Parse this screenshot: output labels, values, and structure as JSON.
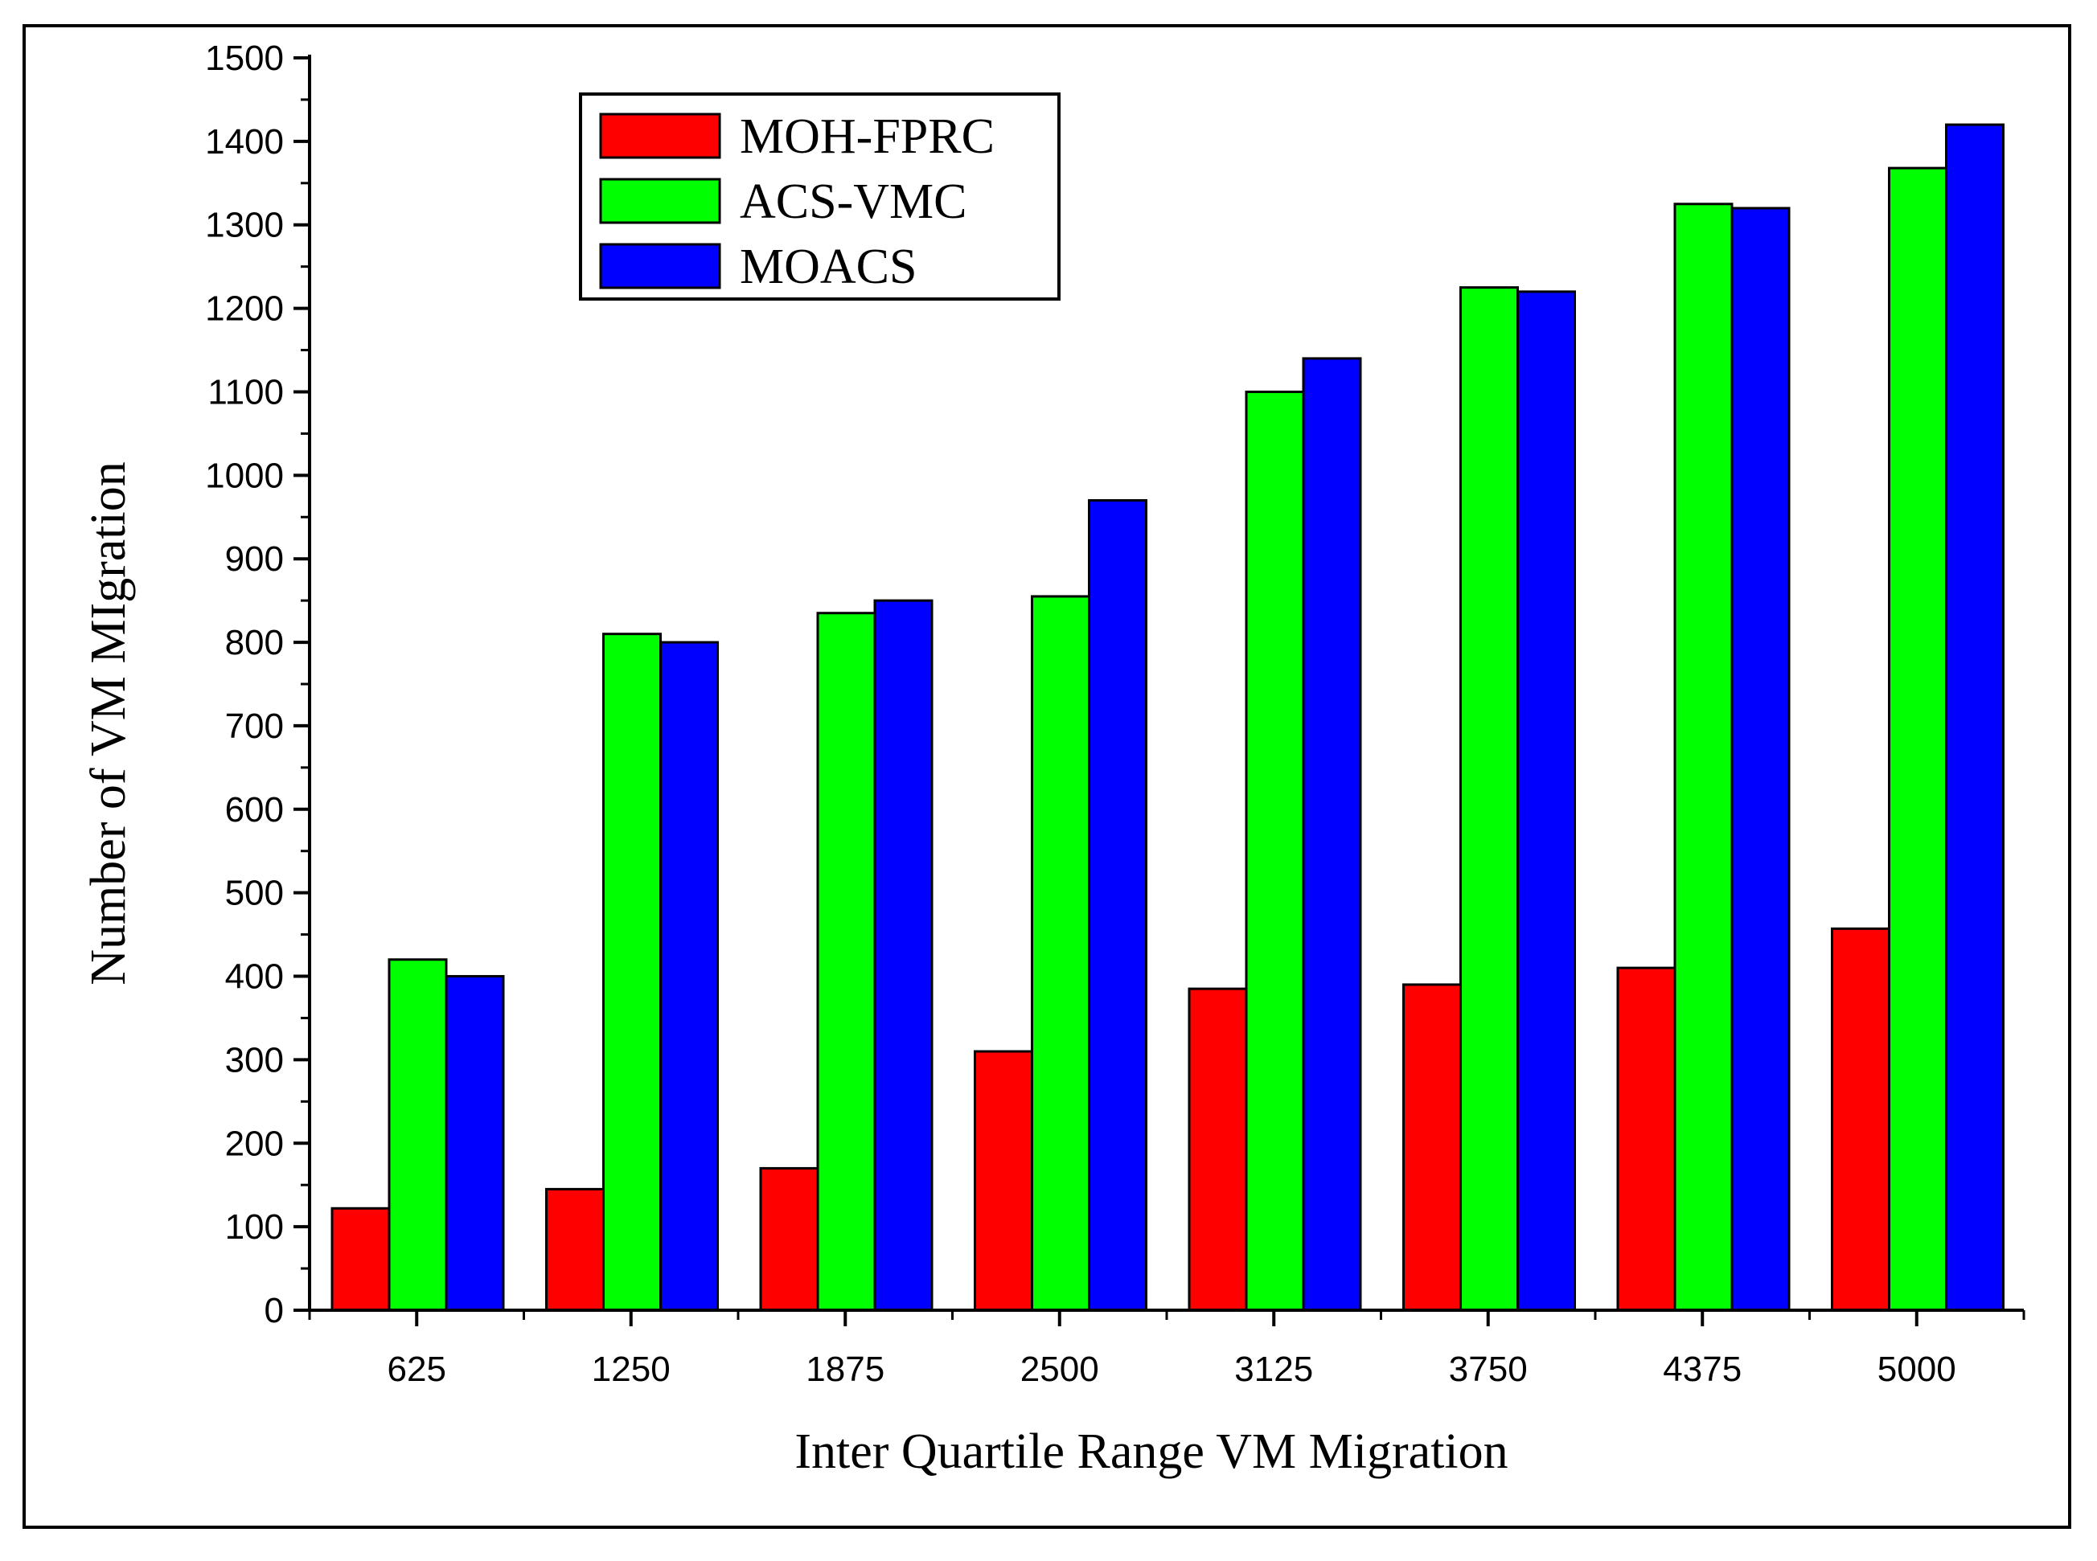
{
  "chart_data": {
    "type": "bar",
    "title": "",
    "xlabel": "Inter Quartile Range VM Migration",
    "ylabel": "Number of VM MIgration",
    "categories": [
      "625",
      "1250",
      "1875",
      "2500",
      "3125",
      "3750",
      "4375",
      "5000"
    ],
    "series": [
      {
        "name": "MOH-FPRC",
        "color": "#ff0000",
        "values": [
          122,
          145,
          170,
          310,
          385,
          390,
          410,
          457
        ]
      },
      {
        "name": "ACS-VMC",
        "color": "#00ff00",
        "values": [
          420,
          810,
          835,
          855,
          1100,
          1225,
          1325,
          1368
        ]
      },
      {
        "name": "MOACS",
        "color": "#0000ff",
        "values": [
          400,
          800,
          850,
          970,
          1140,
          1220,
          1320,
          1420
        ]
      }
    ],
    "yticks": [
      "0",
      "100",
      "200",
      "300",
      "400",
      "500",
      "600",
      "700",
      "800",
      "900",
      "1000",
      "1100",
      "1200",
      "1300",
      "1400",
      "1500"
    ],
    "ylim": [
      0,
      1500
    ],
    "grid": false,
    "legend_position": "top-left"
  }
}
